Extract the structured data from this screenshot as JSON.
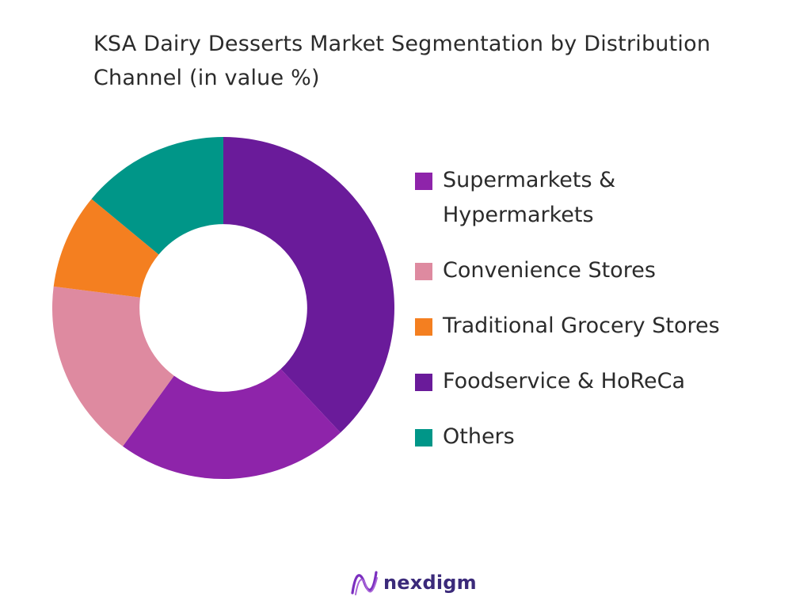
{
  "chart_data": {
    "type": "pie",
    "title": "KSA Dairy Desserts Market Segmentation by Distribution Channel (in value %)",
    "title_lines": [
      "KSA Dairy Desserts Market Segmentation by Distribution",
      "Channel (in value %)"
    ],
    "hole": 0.49,
    "start_angle_deg": 0,
    "direction": "clockwise",
    "legend_position": "right",
    "slices": [
      {
        "name": "Foodservice & HoReCa",
        "value": 38,
        "color": "#6a1b9a"
      },
      {
        "name": "Supermarkets & Hypermarkets",
        "value": 22,
        "color": "#8e24aa"
      },
      {
        "name": "Convenience Stores",
        "value": 17,
        "color": "#de8aa0"
      },
      {
        "name": "Traditional Grocery Stores",
        "value": 9,
        "color": "#f47f20"
      },
      {
        "name": "Others",
        "value": 14,
        "color": "#009688"
      }
    ],
    "legend": [
      {
        "label": "Supermarkets & Hypermarkets",
        "color": "#8e24aa"
      },
      {
        "label": "Convenience Stores",
        "color": "#de8aa0"
      },
      {
        "label": "Traditional Grocery Stores",
        "color": "#f47f20"
      },
      {
        "label": "Foodservice & HoReCa",
        "color": "#6a1b9a"
      },
      {
        "label": "Others",
        "color": "#009688"
      }
    ]
  },
  "brand": {
    "name": "nexdigm",
    "logo_icon": "nexdigm-wave-icon",
    "colors": [
      "#7b2fbf",
      "#3b2a7a"
    ]
  }
}
